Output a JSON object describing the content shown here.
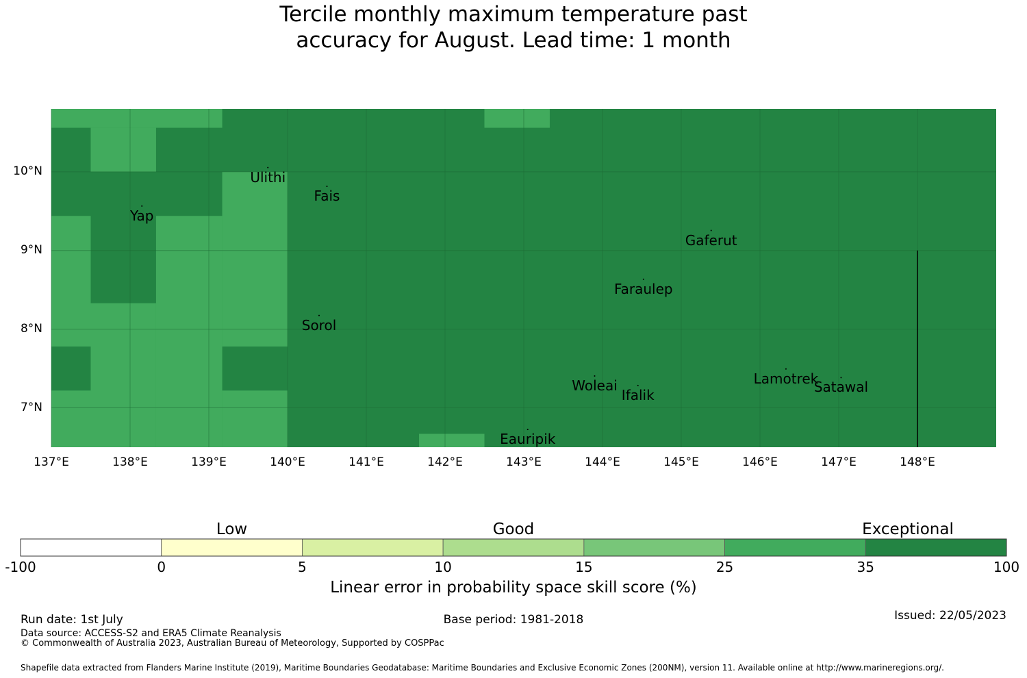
{
  "title_line1": "Tercile monthly maximum temperature past",
  "title_line2": "accuracy for August. Lead time: 1 month",
  "map": {
    "lon_min": 137,
    "lon_max": 149,
    "lat_min": 6.5,
    "lat_max": 10.8,
    "lat_ticks": [
      {
        "value": 10,
        "label": "10°N"
      },
      {
        "value": 9,
        "label": "9°N"
      },
      {
        "value": 8,
        "label": "8°N"
      },
      {
        "value": 7,
        "label": "7°N"
      }
    ],
    "lon_ticks": [
      {
        "value": 137,
        "label": "137°E"
      },
      {
        "value": 138,
        "label": "138°E"
      },
      {
        "value": 139,
        "label": "139°E"
      },
      {
        "value": 140,
        "label": "140°E"
      },
      {
        "value": 141,
        "label": "141°E"
      },
      {
        "value": 142,
        "label": "142°E"
      },
      {
        "value": 143,
        "label": "143°E"
      },
      {
        "value": 144,
        "label": "144°E"
      },
      {
        "value": 145,
        "label": "145°E"
      },
      {
        "value": 146,
        "label": "146°E"
      },
      {
        "value": 147,
        "label": "147°E"
      },
      {
        "value": 148,
        "label": "148°E"
      }
    ],
    "background_category": "35-100",
    "regions": [
      {
        "lon": [
          137.0,
          139.17
        ],
        "lat": [
          10.56,
          10.8
        ],
        "category": "25-35"
      },
      {
        "lon": [
          137.5,
          138.33
        ],
        "lat": [
          10.0,
          10.56
        ],
        "category": "25-35"
      },
      {
        "lon": [
          139.17,
          140.0
        ],
        "lat": [
          6.5,
          10.0
        ],
        "category": "25-35"
      },
      {
        "lon": [
          137.0,
          137.5
        ],
        "lat": [
          6.5,
          9.44
        ],
        "category": "25-35"
      },
      {
        "lon": [
          137.5,
          138.33
        ],
        "lat": [
          6.5,
          8.33
        ],
        "category": "25-35"
      },
      {
        "lon": [
          138.33,
          139.17
        ],
        "lat": [
          6.5,
          9.44
        ],
        "category": "25-35"
      },
      {
        "lon": [
          142.5,
          143.33
        ],
        "lat": [
          10.56,
          10.8
        ],
        "category": "25-35"
      },
      {
        "lon": [
          141.67,
          142.5
        ],
        "lat": [
          6.5,
          6.67
        ],
        "category": "25-35"
      },
      {
        "lon": [
          137.0,
          137.5
        ],
        "lat": [
          7.22,
          7.78
        ],
        "category": "35-100"
      },
      {
        "lon": [
          139.17,
          140.0
        ],
        "lat": [
          7.22,
          7.78
        ],
        "category": "35-100"
      }
    ],
    "places": [
      {
        "name": "Ulithi",
        "lon": 139.75,
        "lat": 10.02
      },
      {
        "name": "Fais",
        "lon": 140.5,
        "lat": 9.78
      },
      {
        "name": "Yap",
        "lon": 138.15,
        "lat": 9.53
      },
      {
        "name": "Gaferut",
        "lon": 145.38,
        "lat": 9.22
      },
      {
        "name": "Faraulep",
        "lon": 144.52,
        "lat": 8.6
      },
      {
        "name": "Sorol",
        "lon": 140.4,
        "lat": 8.14
      },
      {
        "name": "Woleai",
        "lon": 143.9,
        "lat": 7.37
      },
      {
        "name": "Ifalik",
        "lon": 144.45,
        "lat": 7.25
      },
      {
        "name": "Lamotrek",
        "lon": 146.33,
        "lat": 7.46
      },
      {
        "name": "Satawal",
        "lon": 147.03,
        "lat": 7.35
      },
      {
        "name": "Eauripik",
        "lon": 143.05,
        "lat": 6.69
      }
    ],
    "boundary_line": {
      "lon": 148.0,
      "lat": [
        6.5,
        9.0
      ]
    }
  },
  "colorbar": {
    "bins": [
      {
        "range": "-100-0",
        "color": "#ffffff"
      },
      {
        "range": "0-5",
        "color": "#ffffcc"
      },
      {
        "range": "5-10",
        "color": "#d9f0a3"
      },
      {
        "range": "10-15",
        "color": "#addd8e"
      },
      {
        "range": "15-25",
        "color": "#78c679"
      },
      {
        "range": "25-35",
        "color": "#41ab5d"
      },
      {
        "range": "35-100",
        "color": "#238443"
      }
    ],
    "ticks": [
      "-100",
      "0",
      "5",
      "10",
      "15",
      "25",
      "35",
      "100"
    ],
    "categories": [
      "Low",
      "Good",
      "Exceptional"
    ],
    "label": "Linear error in probability space skill score (%)"
  },
  "footer": {
    "run_date": "Run date: 1st July",
    "base_period": "Base period: 1981-2018",
    "issued": "Issued: 22/05/2023",
    "data_source": "Data source: ACCESS-S2 and ERA5 Climate Reanalysis",
    "copyright": "© Commonwealth of Australia 2023, Australian Bureau of Meteorology, Supported by COSPPac",
    "shapefile": "Shapefile data extracted from Flanders Marine Institute (2019), Maritime Boundaries Geodatabase: Maritime Boundaries and Exclusive Economic Zones (200NM), version 11. Available online at http://www.marineregions.org/."
  }
}
